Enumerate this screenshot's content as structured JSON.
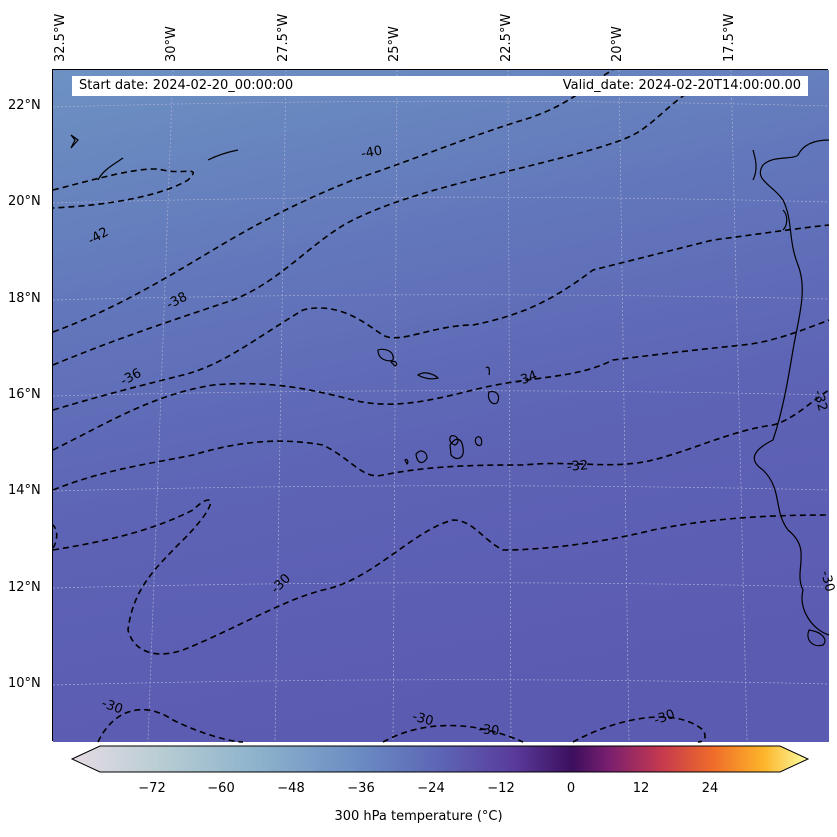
{
  "header": {
    "start_date": "Start date: 2024-02-20_00:00:00",
    "valid_date": "Valid_date: 2024-02-20T14:00:00.00"
  },
  "longitude_labels": [
    "32.5°W",
    "30°W",
    "27.5°W",
    "25°W",
    "22.5°W",
    "20°W",
    "17.5°W"
  ],
  "latitude_labels": [
    "22°N",
    "20°N",
    "18°N",
    "16°N",
    "14°N",
    "12°N",
    "10°N"
  ],
  "contour_labels": [
    "-40",
    "-42",
    "-38",
    "-36",
    "-34",
    "-32",
    "-32",
    "-30",
    "-30",
    "-30",
    "-30",
    "-30",
    "-30"
  ],
  "colorbar": {
    "label": "300 hPa temperature (°C)",
    "ticks": [
      "−72",
      "−60",
      "−48",
      "−36",
      "−24",
      "−12",
      "0",
      "12",
      "24"
    ],
    "colormap": [
      "#e6dbe4",
      "#b8cdd3",
      "#8db3cc",
      "#6c8fc4",
      "#5c65b5",
      "#5a3b9c",
      "#3c0f5e",
      "#7a1f6f",
      "#c4394f",
      "#ef6b2a",
      "#fdb52a",
      "#fcfea4"
    ]
  },
  "colors": {
    "field_north": "#6a8ec0",
    "field_mid": "#5f6db8",
    "field_south": "#5c5db2",
    "contour": "#000000",
    "grid": "#a8aed0"
  }
}
